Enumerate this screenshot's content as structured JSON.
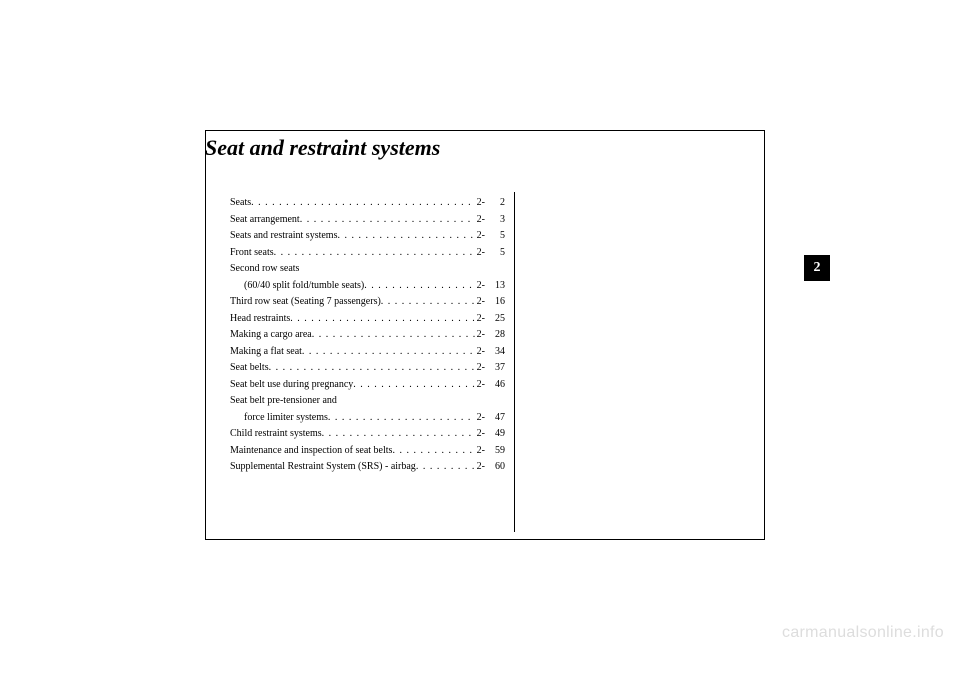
{
  "chapter": {
    "title": "Seat and restraint systems",
    "tab_number": "2"
  },
  "toc": {
    "entries": [
      {
        "label": "Seats",
        "chapter": "2-",
        "page": "2",
        "continuation": false,
        "dots": true
      },
      {
        "label": "Seat arrangement",
        "chapter": "2-",
        "page": "3",
        "continuation": false,
        "dots": true
      },
      {
        "label": "Seats and restraint systems",
        "chapter": "2-",
        "page": "5",
        "continuation": false,
        "dots": true
      },
      {
        "label": "Front seats",
        "chapter": "2-",
        "page": "5",
        "continuation": false,
        "dots": true
      },
      {
        "label": "Second row seats",
        "chapter": "",
        "page": "",
        "continuation": false,
        "dots": false
      },
      {
        "label": "(60/40 split fold/tumble seats)",
        "chapter": "2-",
        "page": "13",
        "continuation": true,
        "dots": true
      },
      {
        "label": "Third row seat (Seating 7 passengers)",
        "chapter": "2-",
        "page": "16",
        "continuation": false,
        "dots": true
      },
      {
        "label": "Head restraints",
        "chapter": "2-",
        "page": "25",
        "continuation": false,
        "dots": true
      },
      {
        "label": "Making a cargo area",
        "chapter": "2-",
        "page": "28",
        "continuation": false,
        "dots": true
      },
      {
        "label": "Making a flat seat",
        "chapter": "2-",
        "page": "34",
        "continuation": false,
        "dots": true
      },
      {
        "label": "Seat belts",
        "chapter": "2-",
        "page": "37",
        "continuation": false,
        "dots": true
      },
      {
        "label": "Seat belt use during pregnancy",
        "chapter": "2-",
        "page": "46",
        "continuation": false,
        "dots": true
      },
      {
        "label": "Seat belt pre-tensioner and",
        "chapter": "",
        "page": "",
        "continuation": false,
        "dots": false
      },
      {
        "label": "force limiter systems",
        "chapter": "2-",
        "page": "47",
        "continuation": true,
        "dots": true
      },
      {
        "label": "Child restraint systems",
        "chapter": "2-",
        "page": "49",
        "continuation": false,
        "dots": true
      },
      {
        "label": "Maintenance and inspection of seat belts",
        "chapter": "2-",
        "page": "59",
        "continuation": false,
        "dots": true
      },
      {
        "label": "Supplemental Restraint System (SRS) - airbag",
        "chapter": "2-",
        "page": "60",
        "continuation": false,
        "dots": true
      }
    ]
  },
  "watermark": {
    "text": "carmanualsonline.info"
  },
  "styling": {
    "page_bg": "#ffffff",
    "text_color": "#000000",
    "watermark_color": "#dddddd",
    "tab_bg": "#000000",
    "tab_fg": "#ffffff",
    "title_fontsize": 22,
    "toc_fontsize": 10,
    "toc_lineheight": 1.65,
    "border_color": "#000000"
  }
}
